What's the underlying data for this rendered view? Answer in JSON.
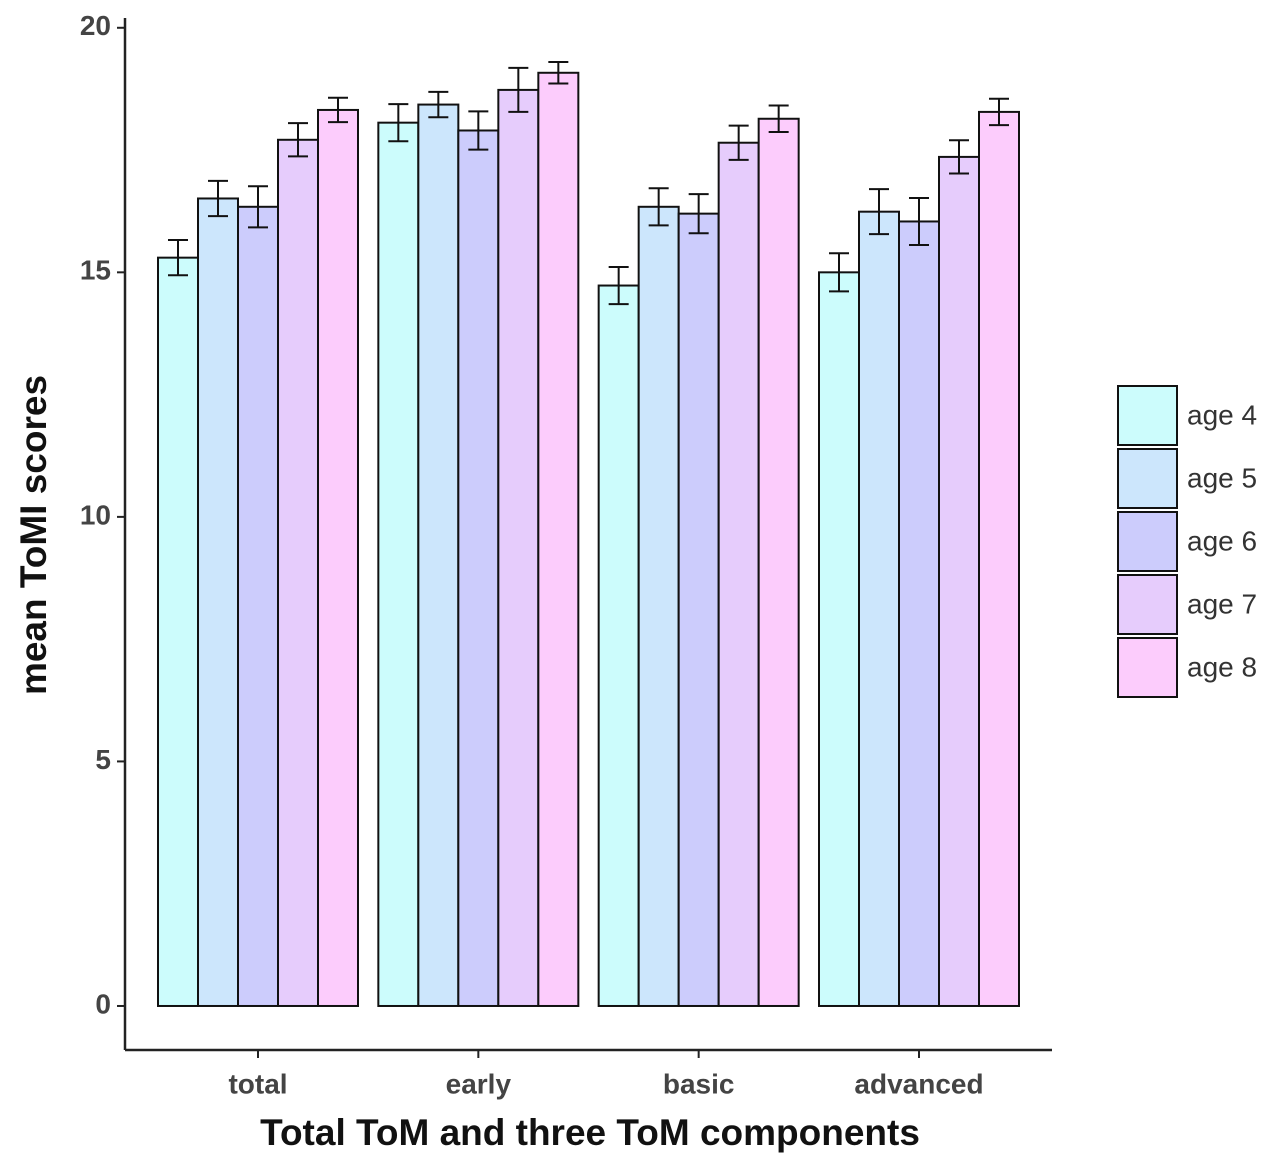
{
  "chart_data": {
    "type": "bar",
    "x_label": "Total ToM and three ToM components",
    "y_label": "mean ToMI scores",
    "categories": [
      "total",
      "early",
      "basic",
      "advanced"
    ],
    "series": [
      {
        "name": "age 4",
        "color": "#ccfcfc",
        "values": [
          15.3,
          18.06,
          14.73,
          15.0
        ],
        "errors": [
          0.36,
          0.38,
          0.38,
          0.39
        ]
      },
      {
        "name": "age 5",
        "color": "#cce6fc",
        "values": [
          16.51,
          18.43,
          16.34,
          16.24
        ],
        "errors": [
          0.36,
          0.26,
          0.38,
          0.46
        ]
      },
      {
        "name": "age 6",
        "color": "#ccccfc",
        "values": [
          16.34,
          17.9,
          16.2,
          16.04
        ],
        "errors": [
          0.42,
          0.39,
          0.4,
          0.48
        ]
      },
      {
        "name": "age 7",
        "color": "#e6ccfc",
        "values": [
          17.71,
          18.73,
          17.65,
          17.36
        ],
        "errors": [
          0.34,
          0.45,
          0.35,
          0.34
        ]
      },
      {
        "name": "age 8",
        "color": "#fcccfc",
        "values": [
          18.32,
          19.08,
          18.14,
          18.28
        ],
        "errors": [
          0.25,
          0.22,
          0.27,
          0.27
        ]
      }
    ],
    "ylim": [
      -0.9,
      20.2
    ],
    "yticks": [
      0,
      5,
      10,
      15,
      20
    ],
    "grid": false,
    "legend": "right"
  }
}
